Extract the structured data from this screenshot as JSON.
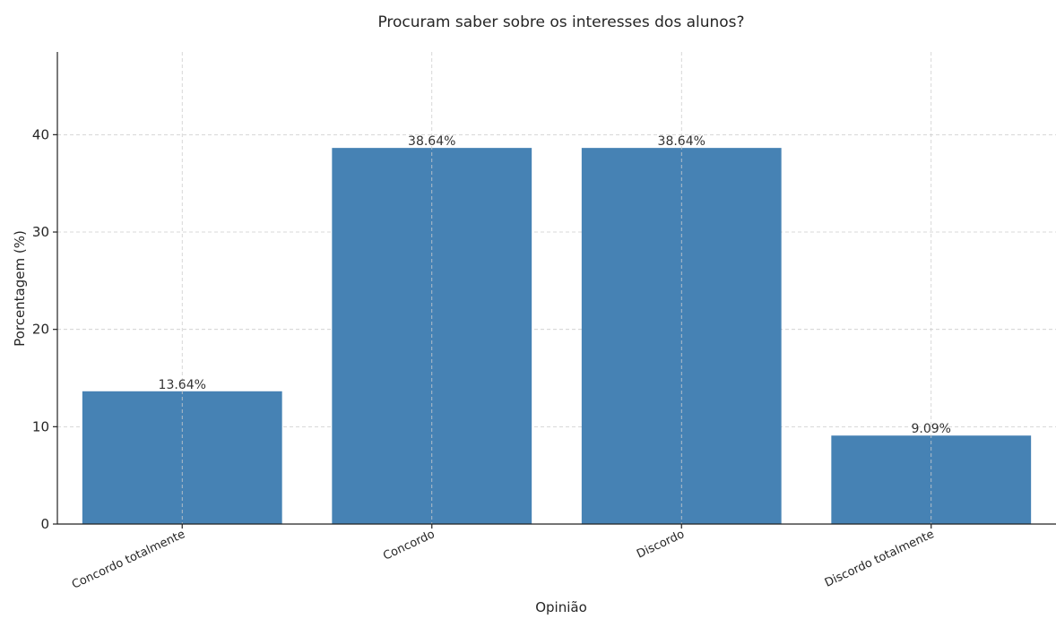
{
  "chart_data": {
    "type": "bar",
    "title": "Procuram saber sobre os interesses dos alunos?",
    "xlabel": "Opinião",
    "ylabel": "Porcentagem (%)",
    "categories": [
      "Concordo totalmente",
      "Concordo",
      "Discordo",
      "Discordo totalmente"
    ],
    "values": [
      13.64,
      38.64,
      38.64,
      9.09
    ],
    "value_labels": [
      "13.64%",
      "38.64%",
      "38.64%",
      "9.09%"
    ],
    "ylim": [
      0,
      48.5
    ],
    "yticks": [
      0,
      10,
      20,
      30,
      40
    ],
    "grid": true,
    "bar_color": "#4682b4"
  }
}
